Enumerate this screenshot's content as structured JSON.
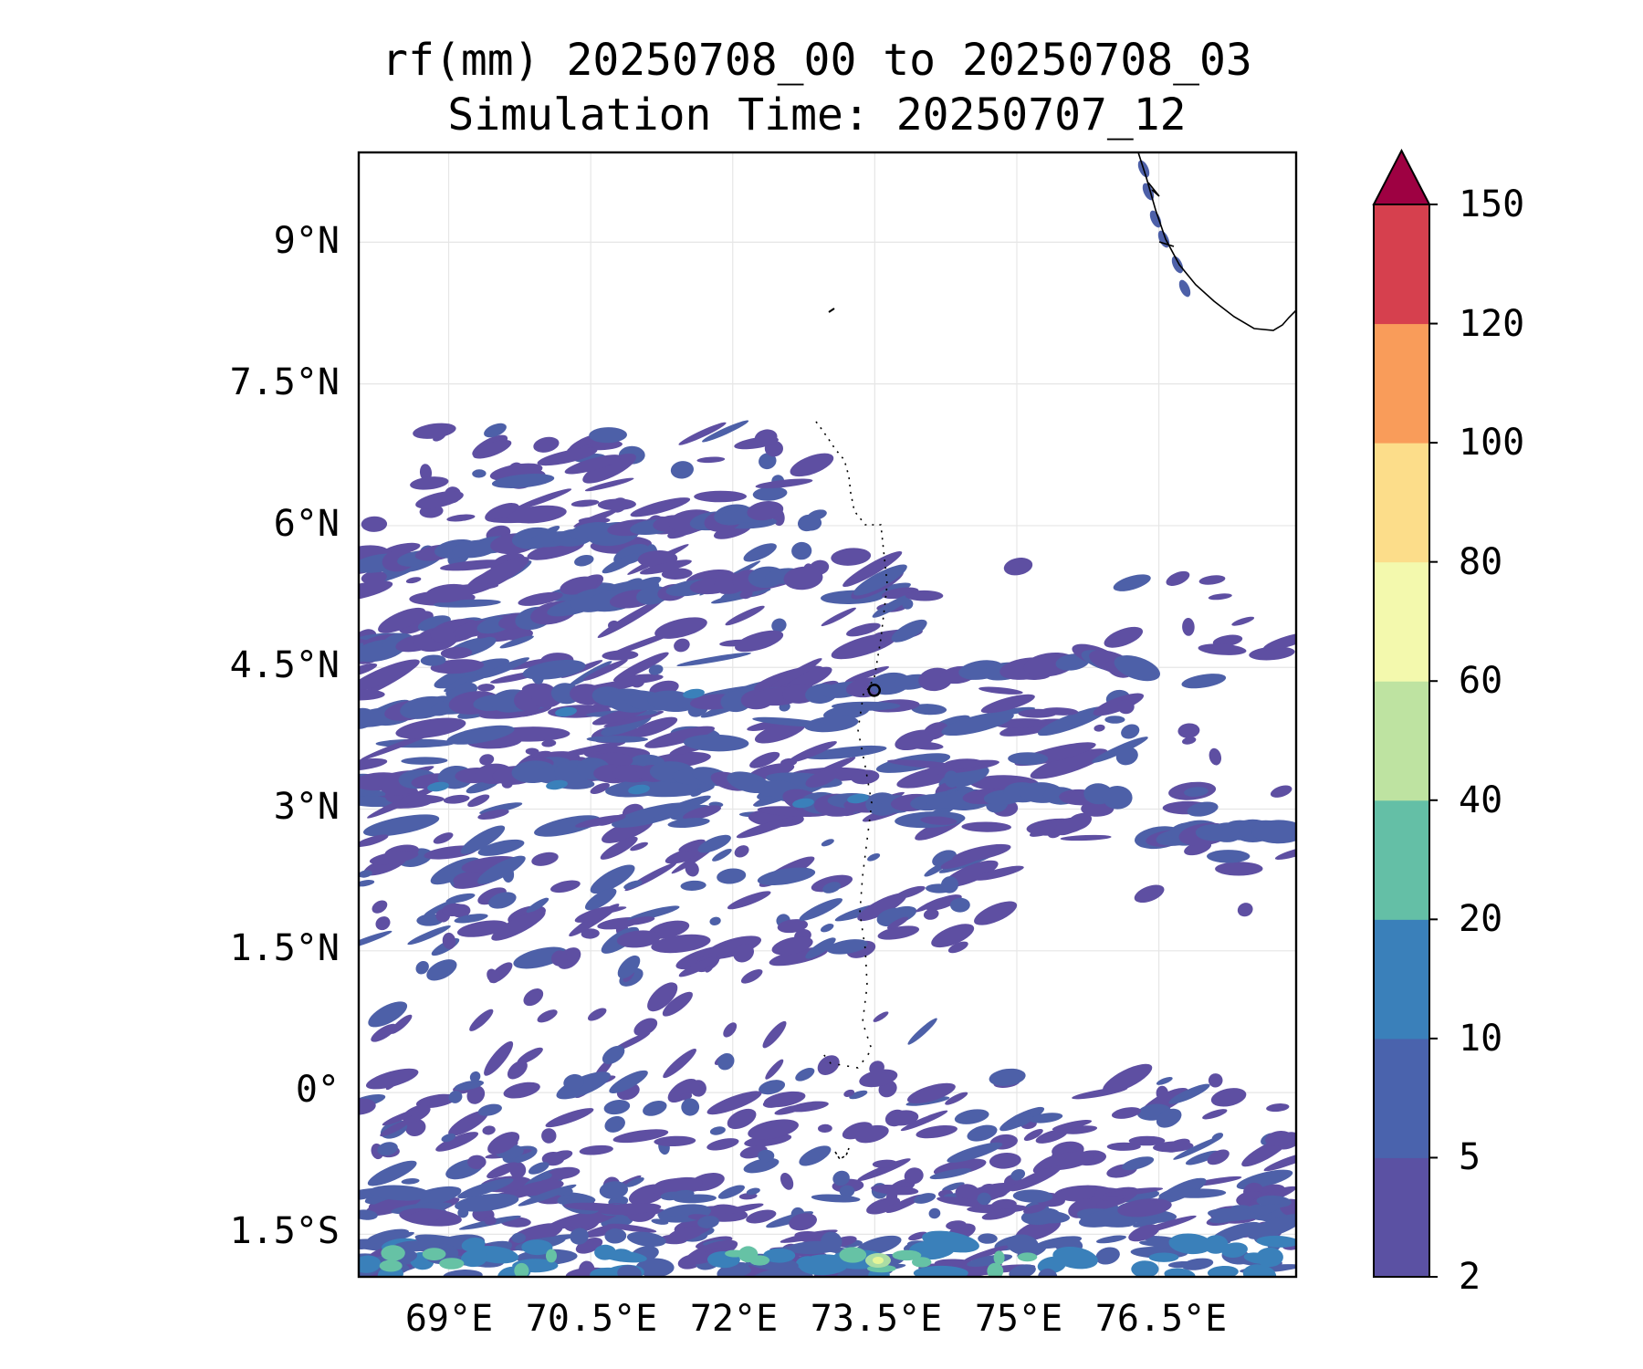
{
  "map": {
    "title_line1": "rf(mm) 20250708_00 to 20250708_03",
    "title_line2": "Simulation Time: 20250707_12",
    "lat_ticks": [
      "9°N",
      "7.5°N",
      "6°N",
      "4.5°N",
      "3°N",
      "1.5°N",
      "0°",
      "1.5°S"
    ],
    "lon_ticks": [
      "69°E",
      "70.5°E",
      "72°E",
      "73.5°E",
      "75°E",
      "76.5°E"
    ],
    "extent": {
      "lon_min": 68.05,
      "lon_max": 77.95,
      "lat_min": -1.95,
      "lat_max": 9.95
    },
    "grid": true,
    "field_colors": {
      "2-5": "#5e4fa2",
      "5-10": "#4d60a8",
      "10-20": "#3a80ba",
      "20-40": "#66c2a5",
      "40-60": "#abdda4",
      "60-80": "#e6f598"
    }
  },
  "colorbar": {
    "tick_labels": [
      "2",
      "5",
      "10",
      "20",
      "40",
      "60",
      "80",
      "100",
      "120",
      "150"
    ],
    "colors": [
      "#5b51a3",
      "#4a63ad",
      "#3a80ba",
      "#64bfa6",
      "#bee3a1",
      "#f3f9ad",
      "#fcdd8a",
      "#f99c5a",
      "#d6404e"
    ],
    "extend_color": "#9e0142"
  }
}
